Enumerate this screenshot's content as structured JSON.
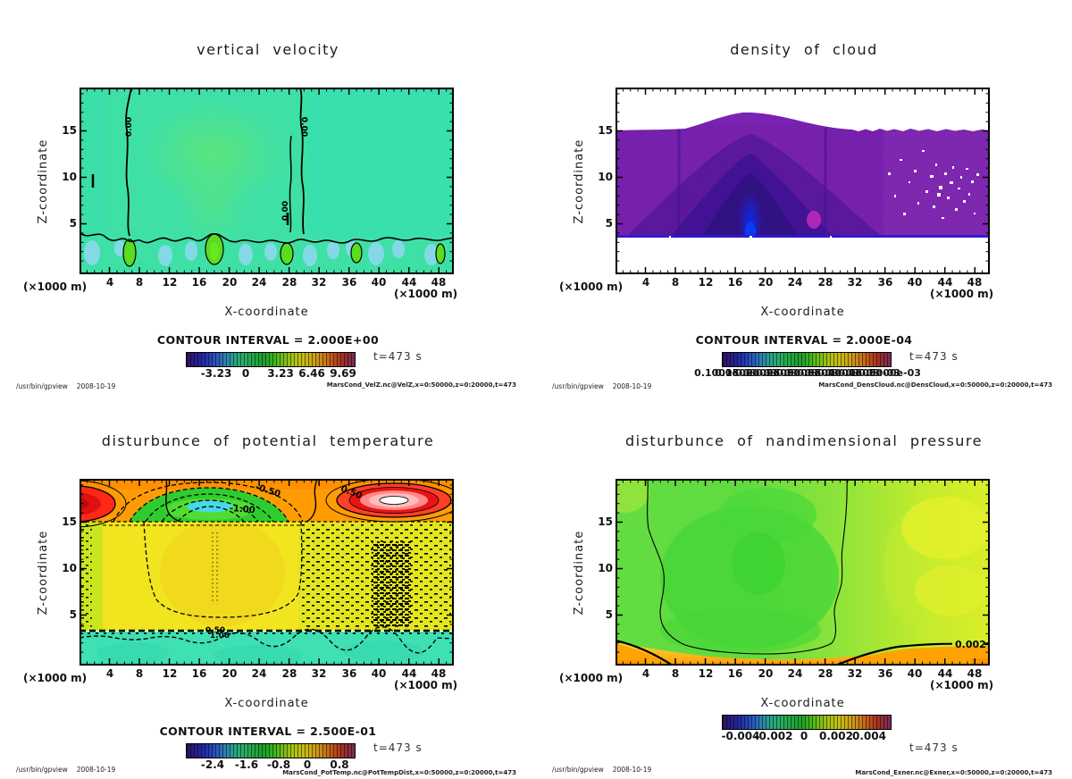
{
  "app": {
    "command": "/usr/bin/gpview",
    "date": "2008-10-19"
  },
  "panels": [
    {
      "title": "vertical velocity",
      "xlabel": "X-coordinate",
      "ylabel": "Z-coordinate",
      "x_unit_left": "(×1000 m)",
      "x_unit_right": "(×1000 m)",
      "x_ticks": [
        "4",
        "8",
        "12",
        "16",
        "20",
        "24",
        "28",
        "32",
        "36",
        "40",
        "44",
        "48"
      ],
      "y_ticks": [
        "15",
        "10",
        "5"
      ],
      "contour_interval": "CONTOUR INTERVAL = 2.000E+00",
      "colorbar_ticks": [
        "-3.23",
        "0",
        "3.23",
        "6.46",
        "9.69"
      ],
      "time": "t=473 s",
      "dataset": "MarsCond_VelZ.nc@VelZ,x=0:50000,z=0:20000,t=473",
      "contour_labels": {
        "a": "0.00",
        "b": "0.00",
        "c": "0.00"
      }
    },
    {
      "title": "density of cloud",
      "xlabel": "X-coordinate",
      "ylabel": "Z-coordinate",
      "x_unit_left": "(×1000 m)",
      "x_unit_right": "(×1000 m)",
      "x_ticks": [
        "4",
        "8",
        "12",
        "16",
        "20",
        "24",
        "28",
        "32",
        "36",
        "40",
        "44",
        "48"
      ],
      "y_ticks": [
        "15",
        "10",
        "5"
      ],
      "contour_interval": "CONTOUR INTERVAL = 2.000E-04",
      "colorbar_ticks": [
        "0.1000e-03",
        "0.1500e-03",
        "0.2000e-03",
        "0.2500e-03",
        "0.3000e-03",
        "0.3500e-03",
        "0.4000e-03",
        "0.4500e-03",
        "0.5000e-03"
      ],
      "time": "t=473 s",
      "dataset": "MarsCond_DensCloud.nc@DensCloud,x=0:50000,z=0:20000,t=473",
      "contour_labels": {}
    },
    {
      "title": "disturbunce of potential temperature",
      "xlabel": "X-coordinate",
      "ylabel": "Z-coordinate",
      "x_unit_left": "(×1000 m)",
      "x_unit_right": "(×1000 m)",
      "x_ticks": [
        "4",
        "8",
        "12",
        "16",
        "20",
        "24",
        "28",
        "32",
        "36",
        "40",
        "44",
        "48"
      ],
      "y_ticks": [
        "15",
        "10",
        "5"
      ],
      "contour_interval": "CONTOUR INTERVAL = 2.500E-01",
      "colorbar_ticks": [
        "-2.4",
        "-1.6",
        "-0.8",
        "0",
        "0.8"
      ],
      "time": "t=473 s",
      "dataset": "MarsCond_PotTemp.nc@PotTempDist,x=0:50000,z=0:20000,t=473",
      "contour_labels": {
        "neg05": "-0.50",
        "neg1": "-1.00",
        "pos05": "0.50",
        "b050": "0.50",
        "b100": "1.00"
      }
    },
    {
      "title": "disturbunce of nandimensional pressure",
      "xlabel": "X-coordinate",
      "ylabel": "Z-coordinate",
      "x_unit_left": "(×1000 m)",
      "x_unit_right": "(×1000 m)",
      "x_ticks": [
        "4",
        "8",
        "12",
        "16",
        "20",
        "24",
        "28",
        "32",
        "36",
        "40",
        "44",
        "48"
      ],
      "y_ticks": [
        "15",
        "10",
        "5"
      ],
      "contour_interval": "",
      "colorbar_ticks": [
        "-0.004",
        "-0.002",
        "0",
        "0.002",
        "0.004"
      ],
      "time": "t=473 s",
      "dataset": "MarsCond_Exner.nc@Exner,x=0:50000,z=0:20000,t=473",
      "contour_labels": {
        "c002": "0.002"
      }
    }
  ],
  "chart_data": [
    {
      "type": "filled-contour",
      "title": "vertical velocity",
      "variable": "VelZ",
      "x_axis": {
        "label": "X-coordinate",
        "unit": "×1000 m",
        "range": [
          0,
          50
        ],
        "major_ticks": [
          4,
          8,
          12,
          16,
          20,
          24,
          28,
          32,
          36,
          40,
          44,
          48
        ]
      },
      "z_axis": {
        "label": "Z-coordinate",
        "unit": "×1000 m",
        "range": [
          0,
          20
        ],
        "major_ticks": [
          5,
          10,
          15
        ]
      },
      "contour_interval": 2.0,
      "colorbar_ticks": [
        -3.23,
        0,
        3.23,
        6.46,
        9.69
      ],
      "labeled_contours": [
        0.0
      ],
      "time_s": 473,
      "source": "MarsCond_VelZ.nc@VelZ,x=0:50000,z=0:20000,t=473",
      "features": "teal-green field, greener updraft column near x=18, zero contours near x=7 and x=30, alternating green/blue cells below z=4"
    },
    {
      "type": "filled-contour",
      "title": "density of cloud",
      "variable": "DensCloud",
      "x_axis": {
        "label": "X-coordinate",
        "unit": "×1000 m",
        "range": [
          0,
          50
        ],
        "major_ticks": [
          4,
          8,
          12,
          16,
          20,
          24,
          28,
          32,
          36,
          40,
          44,
          48
        ]
      },
      "z_axis": {
        "label": "Z-coordinate",
        "unit": "×1000 m",
        "range": [
          0,
          20
        ],
        "major_ticks": [
          5,
          10,
          15
        ]
      },
      "contour_interval": 0.0002,
      "colorbar_ticks": [
        0.0001,
        0.00015,
        0.0002,
        0.00025,
        0.0003,
        0.00035,
        0.0004,
        0.00045,
        0.0005
      ],
      "labeled_contours": [],
      "time_s": 473,
      "source": "MarsCond_DensCloud.nc@DensCloud,x=0:50000,z=0:20000,t=473",
      "features": "purple cloud layer between z≈3.5 and z≈15-17, domed top peaking near x=18, dark indigo core with bright blue column at x≈18, magenta patch near x≈26, white gaps near x=40-47"
    },
    {
      "type": "filled-contour",
      "title": "disturbunce of potential temperature",
      "variable": "PotTempDist",
      "x_axis": {
        "label": "X-coordinate",
        "unit": "×1000 m",
        "range": [
          0,
          50
        ],
        "major_ticks": [
          4,
          8,
          12,
          16,
          20,
          24,
          28,
          32,
          36,
          40,
          44,
          48
        ]
      },
      "z_axis": {
        "label": "Z-coordinate",
        "unit": "×1000 m",
        "range": [
          0,
          20
        ],
        "major_ticks": [
          5,
          10,
          15
        ]
      },
      "contour_interval": 0.25,
      "colorbar_ticks": [
        -2.4,
        -1.6,
        -0.8,
        0,
        0.8
      ],
      "labeled_contours": [
        -1.0,
        -0.5,
        0.5,
        1.0
      ],
      "time_s": 473,
      "source": "MarsCond_PotTemp.nc@PotTempDist,x=0:50000,z=0:20000,t=473",
      "features": "orange band above z=15 with warm red cells at left edge and x≈42 (white core), cool green dome with cyan center and dashed negative contours near x=18, yellow interior with dashed noise speckles for x>33, teal layer below z≈3.5 with heavy dashed 0.5/1.0 contours"
    },
    {
      "type": "filled-contour",
      "title": "disturbunce of nandimensional pressure",
      "variable": "Exner",
      "x_axis": {
        "label": "X-coordinate",
        "unit": "×1000 m",
        "range": [
          0,
          50
        ],
        "major_ticks": [
          4,
          8,
          12,
          16,
          20,
          24,
          28,
          32,
          36,
          40,
          44,
          48
        ]
      },
      "z_axis": {
        "label": "Z-coordinate",
        "unit": "×1000 m",
        "range": [
          0,
          20
        ],
        "major_ticks": [
          5,
          10,
          15
        ]
      },
      "contour_interval": 0.002,
      "colorbar_ticks": [
        -0.004,
        -0.002,
        0,
        0.002,
        0.004
      ],
      "labeled_contours": [
        0.002
      ],
      "time_s": 473,
      "source": "MarsCond_Exner.nc@Exner,x=0:50000,z=0:20000,t=473",
      "features": "green low-pressure column between x≈5 and x≈31 outlined by a thin zero contour, yellow-green toward the right edge, orange 0.002 band along the bottom corners"
    }
  ],
  "colorbar_palette": [
    "#31125f",
    "#1f2fa8",
    "#2a52c0",
    "#2aa08a",
    "#1f9e2e",
    "#7cbe16",
    "#c9bc14",
    "#cfa016",
    "#c87c1a",
    "#a83420",
    "#7a2c5e"
  ]
}
